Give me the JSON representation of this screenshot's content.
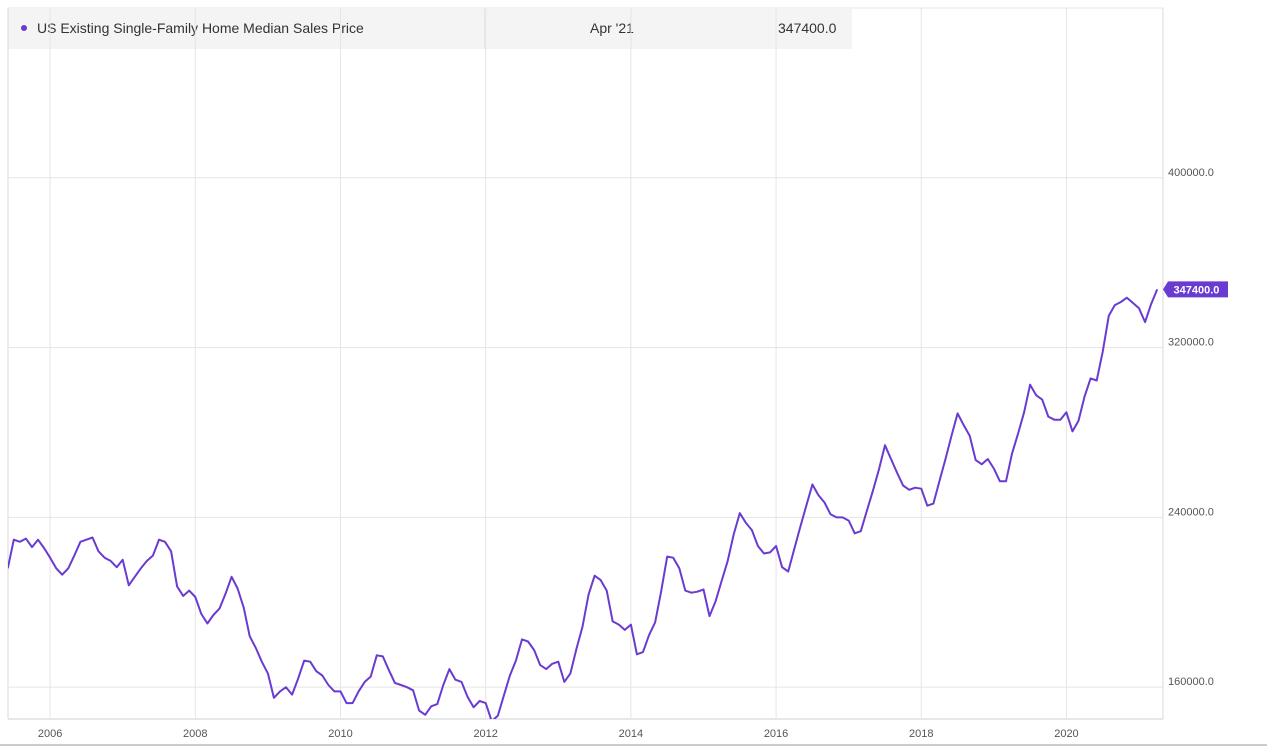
{
  "legend": {
    "series_name": "US Existing Single-Family Home Median Sales Price",
    "date": "Apr '21",
    "value": "347400.0"
  },
  "colors": {
    "series": "#6a3bd1",
    "grid": "#e5e5e5",
    "tick_text": "#555555"
  },
  "chart_data": {
    "type": "line",
    "title": "",
    "xlabel": "",
    "ylabel": "",
    "x_ticks": [
      "2006",
      "2008",
      "2010",
      "2012",
      "2014",
      "2016",
      "2018",
      "2020"
    ],
    "y_ticks": [
      "160000.0",
      "240000.0",
      "320000.0",
      "400000.0"
    ],
    "ylim": [
      145000,
      480000
    ],
    "xlim": [
      2005.42,
      2021.33
    ],
    "grid": true,
    "last_value_label": "347400.0",
    "series": [
      {
        "name": "US Existing Single-Family Home Median Sales Price",
        "x": [
          "2005-06",
          "2005-07",
          "2005-08",
          "2005-09",
          "2005-10",
          "2005-11",
          "2005-12",
          "2006-01",
          "2006-02",
          "2006-03",
          "2006-04",
          "2006-05",
          "2006-06",
          "2006-07",
          "2006-08",
          "2006-09",
          "2006-10",
          "2006-11",
          "2006-12",
          "2007-01",
          "2007-02",
          "2007-03",
          "2007-04",
          "2007-05",
          "2007-06",
          "2007-07",
          "2007-08",
          "2007-09",
          "2007-10",
          "2007-11",
          "2007-12",
          "2008-01",
          "2008-02",
          "2008-03",
          "2008-04",
          "2008-05",
          "2008-06",
          "2008-07",
          "2008-08",
          "2008-09",
          "2008-10",
          "2008-11",
          "2008-12",
          "2009-01",
          "2009-02",
          "2009-03",
          "2009-04",
          "2009-05",
          "2009-06",
          "2009-07",
          "2009-08",
          "2009-09",
          "2009-10",
          "2009-11",
          "2009-12",
          "2010-01",
          "2010-02",
          "2010-03",
          "2010-04",
          "2010-05",
          "2010-06",
          "2010-07",
          "2010-08",
          "2010-09",
          "2010-10",
          "2010-11",
          "2010-12",
          "2011-01",
          "2011-02",
          "2011-03",
          "2011-04",
          "2011-05",
          "2011-06",
          "2011-07",
          "2011-08",
          "2011-09",
          "2011-10",
          "2011-11",
          "2011-12",
          "2012-01",
          "2012-02",
          "2012-03",
          "2012-04",
          "2012-05",
          "2012-06",
          "2012-07",
          "2012-08",
          "2012-09",
          "2012-10",
          "2012-11",
          "2012-12",
          "2013-01",
          "2013-02",
          "2013-03",
          "2013-04",
          "2013-05",
          "2013-06",
          "2013-07",
          "2013-08",
          "2013-09",
          "2013-10",
          "2013-11",
          "2013-12",
          "2014-01",
          "2014-02",
          "2014-03",
          "2014-04",
          "2014-05",
          "2014-06",
          "2014-07",
          "2014-08",
          "2014-09",
          "2014-10",
          "2014-11",
          "2014-12",
          "2015-01",
          "2015-02",
          "2015-03",
          "2015-04",
          "2015-05",
          "2015-06",
          "2015-07",
          "2015-08",
          "2015-09",
          "2015-10",
          "2015-11",
          "2015-12",
          "2016-01",
          "2016-02",
          "2016-03",
          "2016-04",
          "2016-05",
          "2016-06",
          "2016-07",
          "2016-08",
          "2016-09",
          "2016-10",
          "2016-11",
          "2016-12",
          "2017-01",
          "2017-02",
          "2017-03",
          "2017-04",
          "2017-05",
          "2017-06",
          "2017-07",
          "2017-08",
          "2017-09",
          "2017-10",
          "2017-11",
          "2017-12",
          "2018-01",
          "2018-02",
          "2018-03",
          "2018-04",
          "2018-05",
          "2018-06",
          "2018-07",
          "2018-08",
          "2018-09",
          "2018-10",
          "2018-11",
          "2018-12",
          "2019-01",
          "2019-02",
          "2019-03",
          "2019-04",
          "2019-05",
          "2019-06",
          "2019-07",
          "2019-08",
          "2019-09",
          "2019-10",
          "2019-11",
          "2019-12",
          "2020-01",
          "2020-02",
          "2020-03",
          "2020-04",
          "2020-05",
          "2020-06",
          "2020-07",
          "2020-08",
          "2020-09",
          "2020-10",
          "2020-11",
          "2020-12",
          "2021-01",
          "2021-02",
          "2021-03",
          "2021-04"
        ],
        "values": [
          216000,
          229500,
          228500,
          230000,
          226000,
          229500,
          225500,
          221000,
          216000,
          213000,
          216000,
          222000,
          228500,
          229500,
          230500,
          224000,
          221000,
          219500,
          216500,
          220000,
          208000,
          212000,
          216000,
          219500,
          222000,
          229500,
          228500,
          224000,
          207500,
          203000,
          205500,
          202500,
          194500,
          190000,
          194000,
          197000,
          204000,
          212000,
          206500,
          197500,
          184000,
          178500,
          172000,
          166500,
          155000,
          158000,
          160000,
          156500,
          164000,
          172500,
          172000,
          167500,
          165500,
          161000,
          158000,
          158000,
          152500,
          152500,
          158000,
          162500,
          165000,
          175000,
          174500,
          168000,
          162000,
          161000,
          160000,
          158500,
          149000,
          147000,
          151000,
          152000,
          161000,
          168500,
          163500,
          162500,
          155500,
          150500,
          153500,
          152500,
          144000,
          146500,
          156000,
          165500,
          172500,
          182500,
          181500,
          177500,
          170500,
          168500,
          171000,
          172000,
          162500,
          166500,
          178000,
          188500,
          203500,
          212500,
          210500,
          205500,
          191000,
          189500,
          187000,
          189500,
          175500,
          176500,
          184500,
          190500,
          205000,
          221500,
          221000,
          216000,
          205500,
          204500,
          205000,
          206000,
          193500,
          200500,
          210000,
          219500,
          232000,
          242000,
          237500,
          234000,
          226500,
          223000,
          223500,
          226500,
          216500,
          214500,
          225000,
          235500,
          245500,
          255500,
          250500,
          247000,
          241500,
          240000,
          240000,
          238500,
          232500,
          233500,
          243000,
          252500,
          262500,
          274000,
          267500,
          261000,
          255000,
          253000,
          254000,
          253500,
          245500,
          246500,
          257000,
          267500,
          278500,
          289000,
          283500,
          278500,
          267000,
          265000,
          267500,
          263000,
          257000,
          257000,
          270000,
          279500,
          289500,
          302500,
          297500,
          295500,
          287500,
          286000,
          286000,
          289500,
          280500,
          285500,
          297000,
          305500,
          304500,
          318000,
          335000,
          340000,
          341500,
          343500,
          341000,
          338500,
          332000,
          340500,
          347400
        ]
      }
    ]
  }
}
